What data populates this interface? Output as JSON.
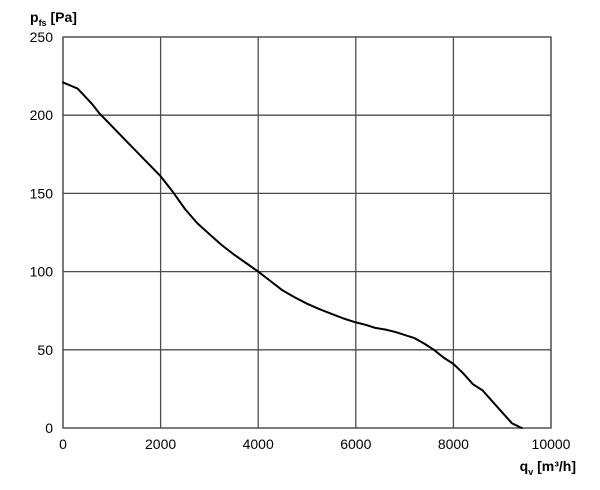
{
  "chart_data": {
    "type": "line",
    "title": "",
    "ylabel": {
      "main": "p",
      "sub": "fs",
      "unit": " [Pa]"
    },
    "xlabel": {
      "main": "q",
      "sub": "v",
      "unit": " [m³/h]"
    },
    "xlim": [
      0,
      10000
    ],
    "ylim": [
      0,
      250
    ],
    "x_ticks": [
      0,
      2000,
      4000,
      6000,
      8000,
      10000
    ],
    "y_ticks": [
      0,
      50,
      100,
      150,
      200,
      250
    ],
    "x_tick_labels": [
      "0",
      "2000",
      "4000",
      "6000",
      "8000",
      "10000"
    ],
    "y_tick_labels": [
      "0",
      "50",
      "100",
      "150",
      "200",
      "250"
    ],
    "grid": true,
    "series": [
      {
        "color": "#000000",
        "x": [
          0,
          150,
          300,
          450,
          600,
          750,
          1000,
          1250,
          1500,
          1750,
          2000,
          2250,
          2500,
          2750,
          3000,
          3250,
          3500,
          3750,
          4000,
          4250,
          4500,
          4750,
          5000,
          5250,
          5500,
          5750,
          6000,
          6200,
          6400,
          6600,
          6800,
          7000,
          7200,
          7400,
          7600,
          7800,
          8000,
          8200,
          8400,
          8600,
          8800,
          9000,
          9200,
          9400
        ],
        "y": [
          221,
          219,
          217,
          212,
          207,
          201,
          193,
          185,
          177,
          169,
          161,
          151,
          140,
          131,
          124,
          117,
          111,
          105.5,
          100,
          94,
          88,
          83.5,
          79.5,
          76,
          73,
          70,
          67.5,
          66,
          64,
          63,
          61.5,
          59.5,
          57.5,
          54,
          50,
          45,
          41,
          35,
          28,
          24,
          17,
          10,
          3,
          0
        ]
      }
    ]
  }
}
